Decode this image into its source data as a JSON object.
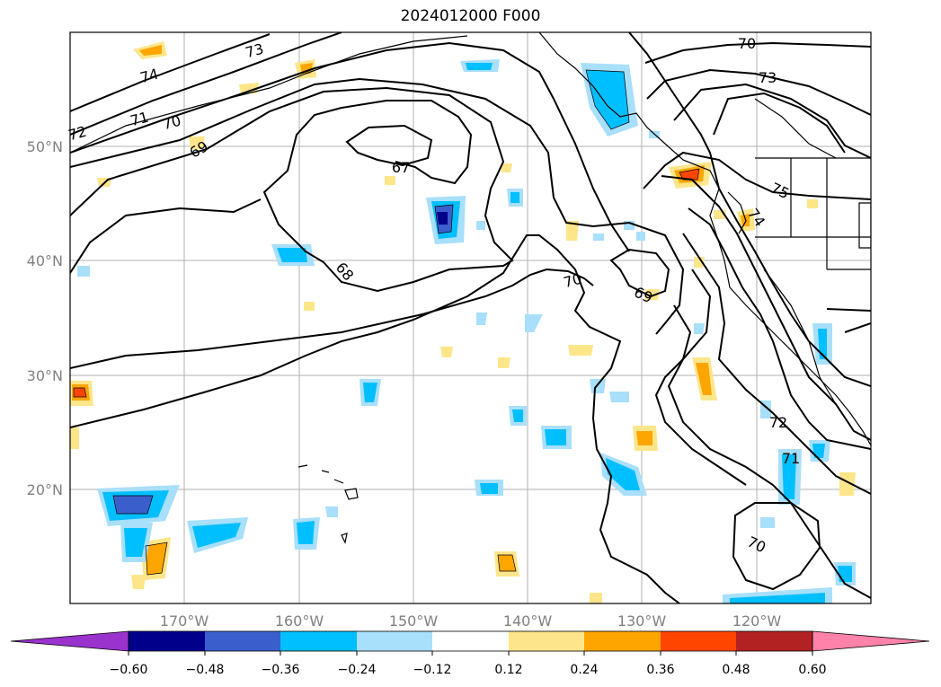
{
  "title": "2024012000 F000",
  "lat_labels": [
    "50°N",
    "40°N",
    "30°N",
    "20°N"
  ],
  "lon_labels": [
    "170°W",
    "160°W",
    "150°W",
    "140°W",
    "130°W",
    "120°W"
  ],
  "contour_labels": [
    "73",
    "74",
    "70",
    "71",
    "72",
    "69",
    "67",
    "68",
    "70",
    "69",
    "70",
    "73",
    "75",
    "74",
    "72",
    "71",
    "70"
  ],
  "colorbar": {
    "ticks": [
      "−0.60",
      "−0.48",
      "−0.36",
      "−0.24",
      "−0.12",
      "0.12",
      "0.24",
      "0.36",
      "0.48",
      "0.60"
    ],
    "colors": {
      "under": "#9a32cd",
      "c1": "#00008b",
      "c2": "#3a5fcd",
      "c3": "#00bfff",
      "c4": "#a8dffa",
      "c5": "#ffffff",
      "c6": "#fde68a",
      "c7": "#ffa500",
      "c8": "#ff4500",
      "c9": "#b22222",
      "over": "#ff82ab"
    }
  }
}
